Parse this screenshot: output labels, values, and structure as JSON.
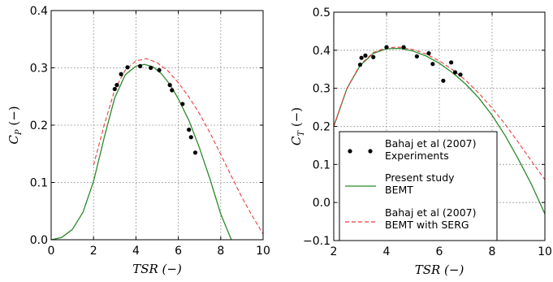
{
  "chart_data": [
    {
      "type": "line",
      "xlabel": "TSR (−)",
      "ylabel": "C_P (−)",
      "ylabel_parts": {
        "main": "C",
        "sub": "P",
        "rest": " (−)"
      },
      "xlim": [
        0,
        10
      ],
      "ylim": [
        0,
        0.4
      ],
      "xticks": [
        0,
        2,
        4,
        6,
        8,
        10
      ],
      "yticks": [
        0.0,
        0.1,
        0.2,
        0.3,
        0.4
      ],
      "xtick_labels": [
        "0",
        "2",
        "4",
        "6",
        "8",
        "10"
      ],
      "ytick_labels": [
        "0.0",
        "0.1",
        "0.2",
        "0.3",
        "0.4"
      ],
      "grid": true,
      "series": [
        {
          "label_ref": "experiments",
          "style": "scatter",
          "color": "#000000",
          "x": [
            3.0,
            3.1,
            3.3,
            3.6,
            4.2,
            4.7,
            5.1,
            5.6,
            5.7,
            6.2,
            6.5,
            6.6,
            6.8
          ],
          "y": [
            0.263,
            0.27,
            0.289,
            0.301,
            0.303,
            0.3,
            0.296,
            0.27,
            0.261,
            0.237,
            0.192,
            0.179,
            0.152
          ]
        },
        {
          "label_ref": "present",
          "style": "solid",
          "color": "#2a8a2a",
          "x": [
            0,
            0.5,
            1.0,
            1.5,
            2.0,
            2.5,
            3.0,
            3.5,
            4.0,
            4.4,
            4.8,
            5.2,
            5.6,
            6.0,
            6.5,
            7.0,
            7.5,
            8.0,
            8.5
          ],
          "y": [
            0.0,
            0.004,
            0.018,
            0.048,
            0.102,
            0.178,
            0.248,
            0.288,
            0.303,
            0.306,
            0.302,
            0.29,
            0.271,
            0.246,
            0.208,
            0.16,
            0.105,
            0.045,
            0.0
          ]
        },
        {
          "label_ref": "serg",
          "style": "dashed",
          "color": "#ee3b3b",
          "x": [
            2.0,
            2.5,
            3.0,
            3.5,
            4.0,
            4.5,
            5.0,
            5.5,
            6.0,
            6.5,
            7.0,
            7.5,
            8.0,
            8.5,
            9.0,
            9.5,
            10.0
          ],
          "y": [
            0.13,
            0.2,
            0.262,
            0.296,
            0.312,
            0.316,
            0.309,
            0.295,
            0.274,
            0.249,
            0.22,
            0.186,
            0.149,
            0.111,
            0.074,
            0.041,
            0.01
          ]
        }
      ]
    },
    {
      "type": "line",
      "xlabel": "TSR (−)",
      "ylabel": "C_T (−)",
      "ylabel_parts": {
        "main": "C",
        "sub": "T",
        "rest": " (−)"
      },
      "xlim": [
        2,
        10
      ],
      "ylim": [
        -0.1,
        0.5
      ],
      "xticks": [
        2,
        4,
        6,
        8,
        10
      ],
      "yticks": [
        -0.1,
        0.0,
        0.1,
        0.2,
        0.3,
        0.4,
        0.5
      ],
      "xtick_labels": [
        "2",
        "4",
        "6",
        "8",
        "10"
      ],
      "ytick_labels": [
        "−0.1",
        "0.0",
        "0.1",
        "0.2",
        "0.3",
        "0.4",
        "0.5"
      ],
      "grid": true,
      "legend_position": "lower-left",
      "series": [
        {
          "label_ref": "experiments",
          "style": "scatter",
          "color": "#000000",
          "x": [
            3.0,
            3.05,
            3.2,
            3.5,
            4.0,
            4.65,
            5.15,
            5.6,
            5.75,
            6.15,
            6.45,
            6.6,
            6.8
          ],
          "y": [
            0.362,
            0.38,
            0.386,
            0.382,
            0.408,
            0.408,
            0.384,
            0.392,
            0.364,
            0.32,
            0.368,
            0.342,
            0.336
          ]
        },
        {
          "label_ref": "present",
          "style": "solid",
          "color": "#2a8a2a",
          "x": [
            2.0,
            2.5,
            3.0,
            3.5,
            4.0,
            4.5,
            5.0,
            5.5,
            6.0,
            6.5,
            7.0,
            7.5,
            8.0,
            8.5,
            9.0,
            9.5,
            10.0
          ],
          "y": [
            0.2,
            0.3,
            0.36,
            0.392,
            0.404,
            0.405,
            0.398,
            0.385,
            0.366,
            0.341,
            0.311,
            0.274,
            0.229,
            0.175,
            0.113,
            0.046,
            -0.03
          ]
        },
        {
          "label_ref": "serg",
          "style": "dashed",
          "color": "#ee3b3b",
          "x": [
            2.0,
            2.5,
            3.0,
            3.5,
            4.0,
            4.5,
            5.0,
            5.5,
            6.0,
            6.5,
            7.0,
            7.5,
            8.0,
            8.5,
            9.0,
            9.5,
            10.0
          ],
          "y": [
            0.2,
            0.3,
            0.362,
            0.394,
            0.407,
            0.408,
            0.402,
            0.39,
            0.372,
            0.349,
            0.321,
            0.287,
            0.248,
            0.205,
            0.157,
            0.108,
            0.06
          ]
        }
      ]
    }
  ],
  "legend": {
    "entries": [
      {
        "ref": "experiments",
        "line1": "Bahaj et al (2007)",
        "line2": "Experiments"
      },
      {
        "ref": "present",
        "line1": "Present study",
        "line2": "BEMT"
      },
      {
        "ref": "serg",
        "line1": "Bahaj et al (2007)",
        "line2": "BEMT with SERG"
      }
    ]
  }
}
